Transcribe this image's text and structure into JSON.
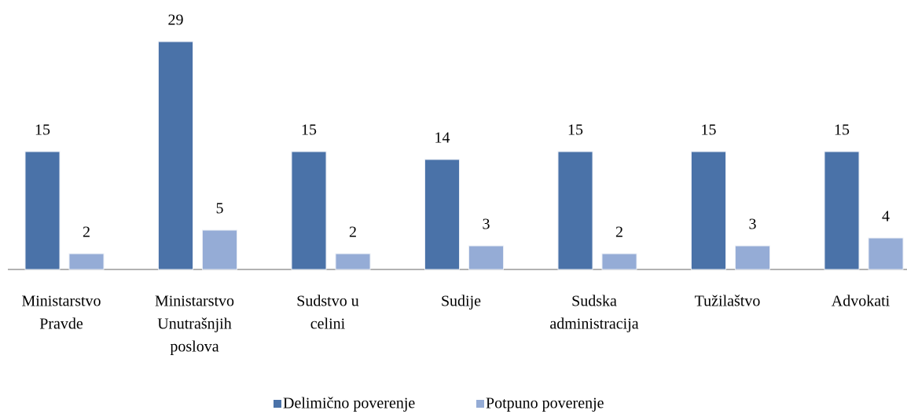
{
  "chart_data": {
    "type": "bar",
    "categories": [
      [
        "Ministarstvo",
        "Pravde"
      ],
      [
        "Ministarstvo",
        "Unutrašnjih",
        "poslova"
      ],
      [
        "Sudstvo u",
        "celini"
      ],
      [
        "Sudije"
      ],
      [
        "Sudska",
        "administracija"
      ],
      [
        "Tužilaštvo"
      ],
      [
        "Advokati"
      ]
    ],
    "series": [
      {
        "name": "Delimično poverenje",
        "color": "#4a72a8",
        "values": [
          15,
          29,
          15,
          14,
          15,
          15,
          15
        ]
      },
      {
        "name": "Potpuno poverenje",
        "color": "#95acd6",
        "values": [
          2,
          5,
          2,
          3,
          2,
          3,
          4
        ]
      }
    ]
  }
}
